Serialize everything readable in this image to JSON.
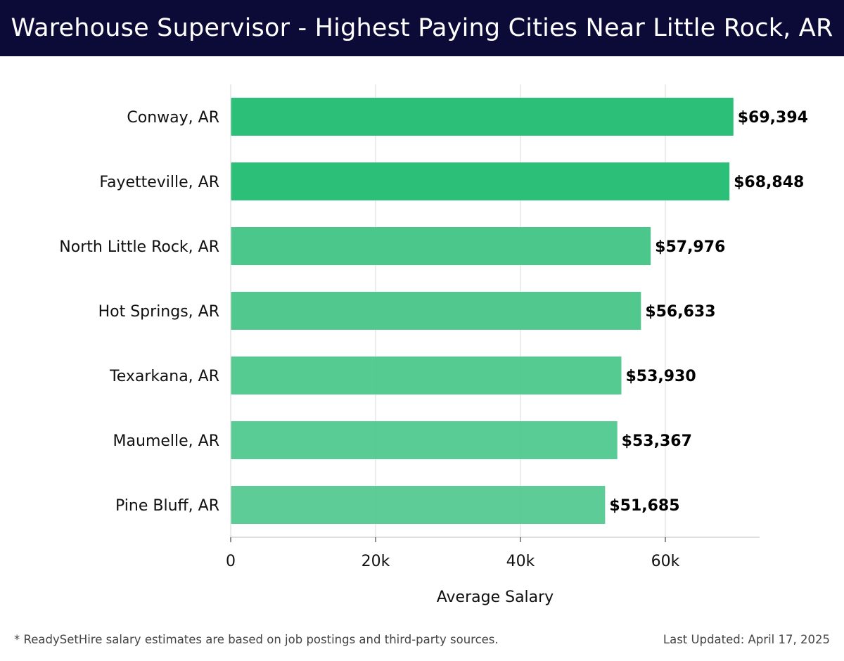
{
  "header": {
    "title": "Warehouse Supervisor - Highest Paying Cities Near Little Rock, AR"
  },
  "chart_data": {
    "type": "bar",
    "orientation": "horizontal",
    "categories": [
      "Conway, AR",
      "Fayetteville, AR",
      "North Little Rock, AR",
      "Hot Springs, AR",
      "Texarkana, AR",
      "Maumelle, AR",
      "Pine Bluff, AR"
    ],
    "values": [
      69394,
      68848,
      57976,
      56633,
      53930,
      53367,
      51685
    ],
    "value_labels": [
      "$69,394",
      "$68,848",
      "$57,976",
      "$56,633",
      "$53,930",
      "$53,367",
      "$51,685"
    ],
    "xlabel": "Average Salary",
    "ylabel": "",
    "xlim": [
      0,
      73000
    ],
    "xticks": [
      0,
      20000,
      40000,
      60000
    ],
    "xtick_labels": [
      "0",
      "20k",
      "40k",
      "60k"
    ],
    "grid": true,
    "colors": {
      "top_bars": "#2bbf78",
      "other_bars": "#4cc78b",
      "title_bar_bg": "#0c0b38"
    }
  },
  "footer": {
    "note": "* ReadySetHire salary estimates are based on job postings and third-party sources.",
    "updated": "Last Updated: April 17, 2025"
  }
}
